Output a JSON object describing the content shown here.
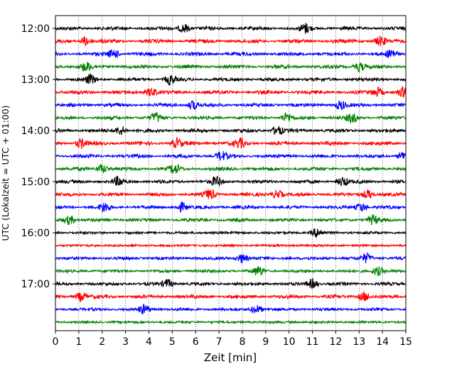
{
  "chart_data": {
    "type": "line",
    "title": "",
    "xlabel": "Zeit  [min]",
    "ylabel": "UTC (Lokalzeit = UTC + 01:00)",
    "xlim": [
      0,
      15
    ],
    "x_ticks": [
      "0",
      "1",
      "2",
      "3",
      "4",
      "5",
      "6",
      "7",
      "8",
      "9",
      "10",
      "11",
      "12",
      "13",
      "14",
      "15"
    ],
    "y_ticks": [
      "12:00",
      "13:00",
      "14:00",
      "15:00",
      "16:00",
      "17:00"
    ],
    "grid": "vertical dotted lines at each minute",
    "trace_minutes": 15,
    "trace_colors": [
      "#000000",
      "#ff0000",
      "#0000ff",
      "#008000"
    ],
    "traces": [
      {
        "start": "12:00",
        "color": "#000000",
        "level": 0.45,
        "events": [
          5.5,
          10.7
        ]
      },
      {
        "start": "12:15",
        "color": "#ff0000",
        "level": 0.5,
        "events": [
          1.3,
          13.9
        ]
      },
      {
        "start": "12:30",
        "color": "#0000ff",
        "level": 0.45,
        "events": [
          2.5,
          14.4
        ]
      },
      {
        "start": "12:45",
        "color": "#008000",
        "level": 0.45,
        "events": [
          1.3,
          13.0
        ]
      },
      {
        "start": "13:00",
        "color": "#000000",
        "level": 0.4,
        "events": [
          1.5,
          4.9
        ]
      },
      {
        "start": "13:15",
        "color": "#ff0000",
        "level": 0.45,
        "events": [
          4.1,
          13.8,
          14.9
        ]
      },
      {
        "start": "13:30",
        "color": "#0000ff",
        "level": 0.4,
        "events": [
          5.9,
          12.2
        ]
      },
      {
        "start": "13:45",
        "color": "#008000",
        "level": 0.4,
        "events": [
          4.3,
          9.9,
          12.7
        ]
      },
      {
        "start": "14:00",
        "color": "#000000",
        "level": 0.45,
        "events": [
          2.8,
          9.5
        ]
      },
      {
        "start": "14:15",
        "color": "#ff0000",
        "level": 0.5,
        "events": [
          1.1,
          5.2,
          7.9
        ]
      },
      {
        "start": "14:30",
        "color": "#0000ff",
        "level": 0.45,
        "events": [
          7.1,
          14.9
        ]
      },
      {
        "start": "14:45",
        "color": "#008000",
        "level": 0.45,
        "events": [
          2.0,
          5.1
        ]
      },
      {
        "start": "15:00",
        "color": "#000000",
        "level": 0.4,
        "events": [
          2.7,
          6.9,
          12.3
        ]
      },
      {
        "start": "15:15",
        "color": "#ff0000",
        "level": 0.45,
        "events": [
          6.6,
          9.5,
          13.4
        ]
      },
      {
        "start": "15:30",
        "color": "#0000ff",
        "level": 0.35,
        "events": [
          2.1,
          5.4,
          13.1
        ]
      },
      {
        "start": "15:45",
        "color": "#008000",
        "level": 0.35,
        "events": [
          0.6,
          13.6
        ]
      },
      {
        "start": "16:00",
        "color": "#000000",
        "level": 0.2,
        "events": [
          11.2
        ]
      },
      {
        "start": "16:15",
        "color": "#ff0000",
        "level": 0.12,
        "events": []
      },
      {
        "start": "16:30",
        "color": "#0000ff",
        "level": 0.3,
        "events": [
          8.0,
          13.3
        ]
      },
      {
        "start": "16:45",
        "color": "#008000",
        "level": 0.3,
        "events": [
          8.7,
          13.8
        ]
      },
      {
        "start": "17:00",
        "color": "#000000",
        "level": 0.35,
        "events": [
          4.8,
          11.0
        ]
      },
      {
        "start": "17:15",
        "color": "#ff0000",
        "level": 0.45,
        "events": [
          1.1,
          13.2
        ]
      },
      {
        "start": "17:30",
        "color": "#0000ff",
        "level": 0.3,
        "events": [
          3.8,
          8.6
        ]
      },
      {
        "start": "17:45",
        "color": "#008000",
        "level": 0.15,
        "events": []
      }
    ]
  }
}
